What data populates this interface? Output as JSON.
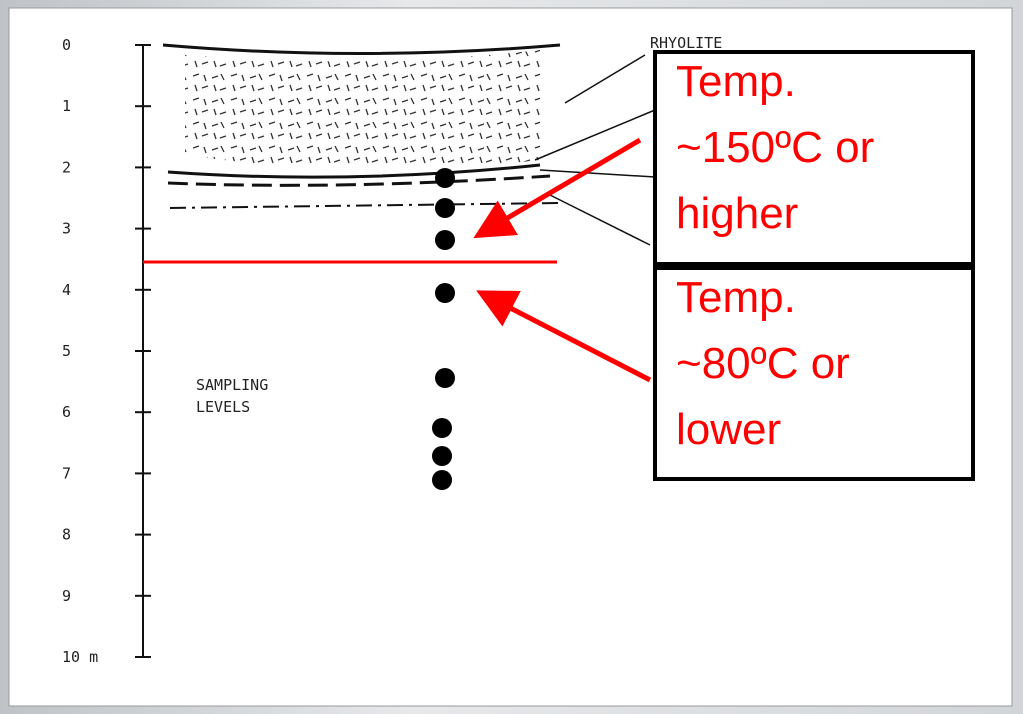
{
  "figure": {
    "depth_labels": [
      "0",
      "1",
      "2",
      "3",
      "4",
      "5",
      "6",
      "7",
      "8",
      "9",
      "10 m"
    ],
    "layer_label": "RHYOLITE",
    "sampling_label": [
      "SAMPLING",
      "LEVELS"
    ]
  },
  "annotations": [
    {
      "lines": [
        "Temp.",
        "~150ºC or",
        "higher"
      ]
    },
    {
      "lines": [
        "Temp.",
        "~80ºC or",
        "lower"
      ]
    }
  ]
}
